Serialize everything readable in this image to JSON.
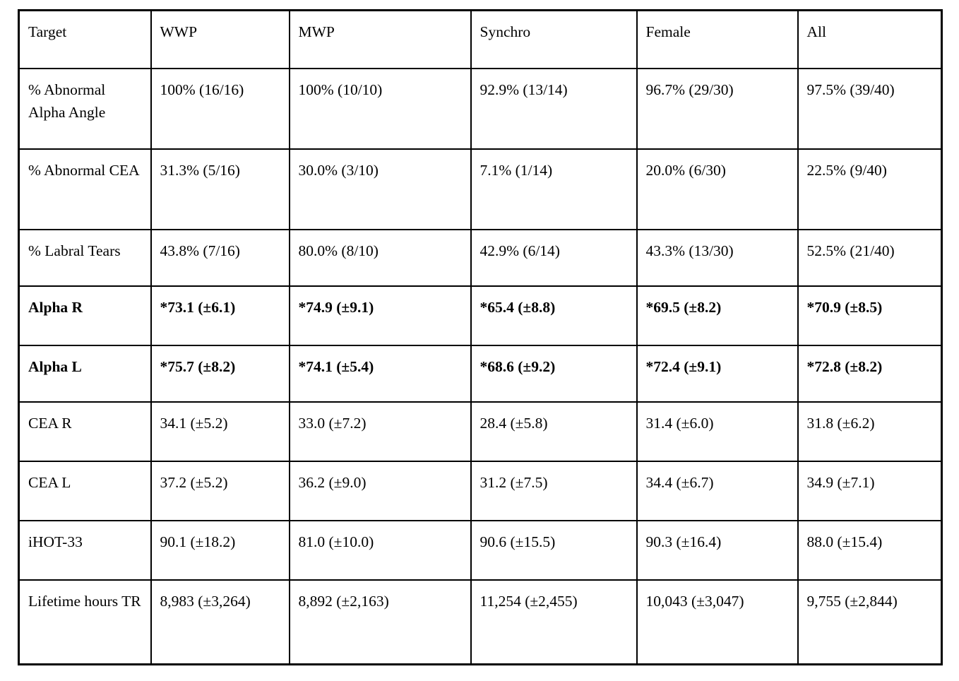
{
  "table": {
    "columns": [
      "Target",
      "WWP",
      "MWP",
      "Synchro",
      "Female",
      "All"
    ],
    "rows": [
      {
        "label": "% Abnormal Alpha Angle",
        "bold": false,
        "values": [
          "100% (16/16)",
          "100% (10/10)",
          "92.9% (13/14)",
          "96.7% (29/30)",
          "97.5% (39/40)"
        ]
      },
      {
        "label": "% Abnormal CEA",
        "bold": false,
        "values": [
          "31.3% (5/16)",
          "30.0% (3/10)",
          "7.1% (1/14)",
          "20.0% (6/30)",
          "22.5% (9/40)"
        ]
      },
      {
        "label": "% Labral Tears",
        "bold": false,
        "values": [
          "43.8% (7/16)",
          "80.0% (8/10)",
          "42.9% (6/14)",
          "43.3% (13/30)",
          "52.5% (21/40)"
        ]
      },
      {
        "label": "Alpha R",
        "bold": true,
        "values": [
          "*73.1 (±6.1)",
          "*74.9 (±9.1)",
          "*65.4 (±8.8)",
          "*69.5 (±8.2)",
          "*70.9 (±8.5)"
        ]
      },
      {
        "label": "Alpha L",
        "bold": true,
        "values": [
          "*75.7 (±8.2)",
          "*74.1 (±5.4)",
          "*68.6 (±9.2)",
          "*72.4 (±9.1)",
          "*72.8 (±8.2)"
        ]
      },
      {
        "label": "CEA R",
        "bold": false,
        "values": [
          "34.1 (±5.2)",
          "33.0 (±7.2)",
          "28.4 (±5.8)",
          "31.4 (±6.0)",
          "31.8 (±6.2)"
        ]
      },
      {
        "label": "CEA L",
        "bold": false,
        "values": [
          "37.2 (±5.2)",
          "36.2 (±9.0)",
          "31.2 (±7.5)",
          "34.4 (±6.7)",
          "34.9 (±7.1)"
        ]
      },
      {
        "label": "iHOT-33",
        "bold": false,
        "values": [
          "90.1 (±18.2)",
          "81.0 (±10.0)",
          "90.6 (±15.5)",
          "90.3 (±16.4)",
          "88.0 (±15.4)"
        ]
      },
      {
        "label": "Lifetime hours TR",
        "bold": false,
        "values": [
          "8,983 (±3,264)",
          "8,892 (±2,163)",
          "11,254 (±2,455)",
          "10,043 (±3,047)",
          "9,755 (±2,844)"
        ]
      }
    ]
  }
}
